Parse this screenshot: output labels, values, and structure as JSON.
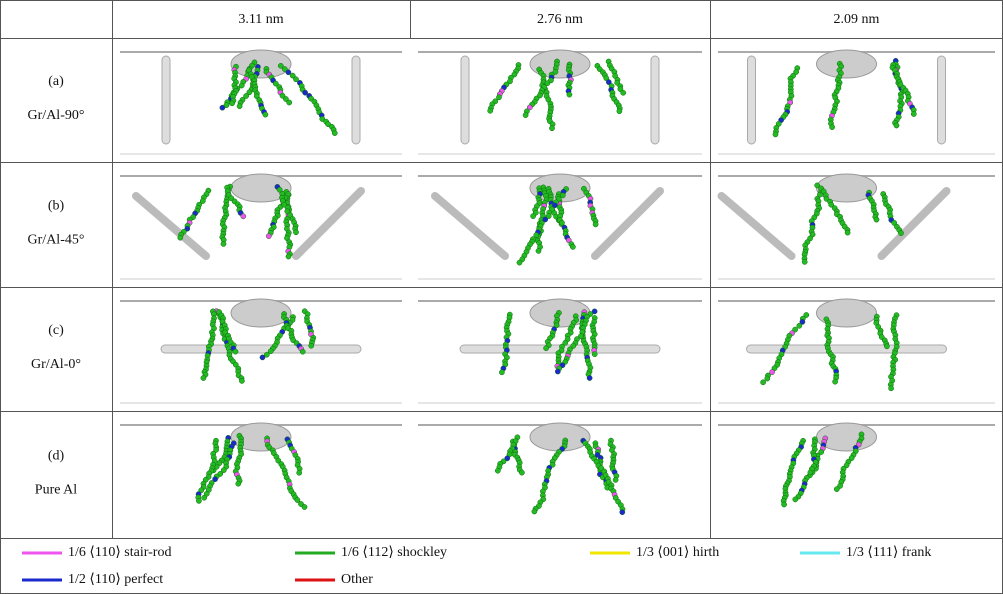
{
  "header": {
    "columns": [
      "3.11 nm",
      "2.76 nm",
      "2.09 nm"
    ]
  },
  "rows": [
    {
      "label": "(a)",
      "material": "Gr/Al-90°"
    },
    {
      "label": "(b)",
      "material": "Gr/Al-45°"
    },
    {
      "label": "(c)",
      "material": "Gr/Al-0°"
    },
    {
      "label": "(d)",
      "material": "Pure Al"
    }
  ],
  "legend": [
    {
      "label": "1/6 ⟨110⟩ stair-rod",
      "color": "#ee55ee"
    },
    {
      "label": "1/6 ⟨112⟩ shockley",
      "color": "#22aa22"
    },
    {
      "label": "1/3 ⟨001⟩ hirth",
      "color": "#f2e600"
    },
    {
      "label": "1/3 ⟨111⟩ frank",
      "color": "#66e8f0"
    },
    {
      "label": "1/2 ⟨110⟩ perfect",
      "color": "#1a2acc"
    },
    {
      "label": "Other",
      "color": "#dd1111"
    }
  ]
}
